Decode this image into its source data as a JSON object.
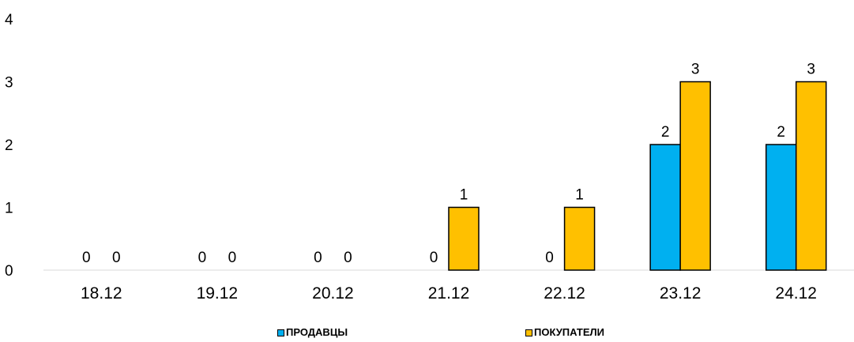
{
  "chart_data": {
    "type": "bar",
    "title": "",
    "xlabel": "",
    "ylabel": "",
    "categories": [
      "18.12",
      "19.12",
      "20.12",
      "21.12",
      "22.12",
      "23.12",
      "24.12"
    ],
    "ylim": [
      0,
      4
    ],
    "yticks": [
      "0",
      "1",
      "2",
      "3",
      "4"
    ],
    "grid": false,
    "legend_position": "bottom",
    "series": [
      {
        "name": "ПРОДАВЦЫ",
        "color": "#00b0f0",
        "values": [
          0,
          0,
          0,
          0,
          0,
          2,
          2
        ],
        "labels": [
          "0",
          "0",
          "0",
          "0",
          "0",
          "2",
          "2"
        ]
      },
      {
        "name": "ПОКУПАТЕЛИ",
        "color": "#ffc000",
        "values": [
          0,
          0,
          0,
          1,
          1,
          3,
          3
        ],
        "labels": [
          "0",
          "0",
          "0",
          "1",
          "1",
          "3",
          "3"
        ]
      }
    ]
  }
}
